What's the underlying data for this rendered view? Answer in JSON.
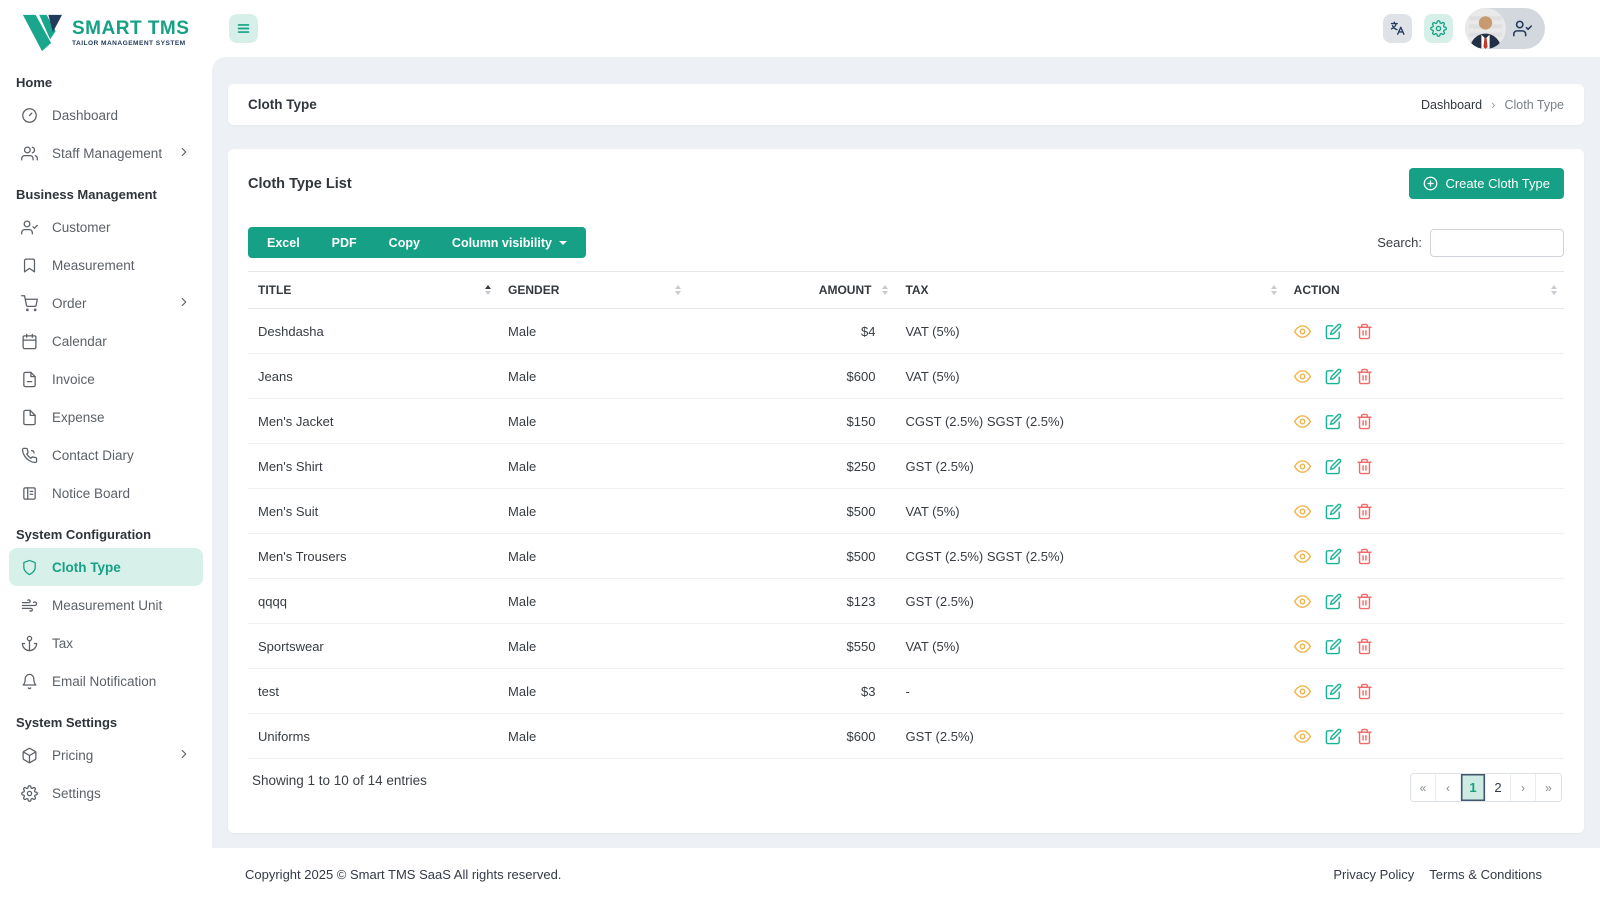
{
  "brand": {
    "title": "SMART TMS",
    "subtitle": "TAILOR MANAGEMENT SYSTEM"
  },
  "sidebar": {
    "sections": [
      {
        "heading": "Home",
        "items": [
          {
            "label": "Dashboard",
            "icon": "dashboard"
          },
          {
            "label": "Staff Management",
            "icon": "users",
            "chevron": true
          }
        ]
      },
      {
        "heading": "Business Management",
        "items": [
          {
            "label": "Customer",
            "icon": "user-check"
          },
          {
            "label": "Measurement",
            "icon": "bookmark"
          },
          {
            "label": "Order",
            "icon": "cart",
            "chevron": true
          },
          {
            "label": "Calendar",
            "icon": "calendar"
          },
          {
            "label": "Invoice",
            "icon": "file-minus"
          },
          {
            "label": "Expense",
            "icon": "file"
          },
          {
            "label": "Contact Diary",
            "icon": "phone"
          },
          {
            "label": "Notice Board",
            "icon": "board"
          }
        ]
      },
      {
        "heading": "System Configuration",
        "items": [
          {
            "label": "Cloth Type",
            "icon": "shield",
            "active": true
          },
          {
            "label": "Measurement Unit",
            "icon": "wind"
          },
          {
            "label": "Tax",
            "icon": "anchor"
          },
          {
            "label": "Email Notification",
            "icon": "bell"
          }
        ]
      },
      {
        "heading": "System Settings",
        "items": [
          {
            "label": "Pricing",
            "icon": "package",
            "chevron": true
          },
          {
            "label": "Settings",
            "icon": "gear"
          }
        ]
      }
    ]
  },
  "breadcrumb": {
    "title": "Cloth Type",
    "items": [
      "Dashboard",
      "Cloth Type"
    ],
    "separator": "›"
  },
  "list": {
    "title": "Cloth Type List",
    "create_button": "Create Cloth Type",
    "export_buttons": [
      "Excel",
      "PDF",
      "Copy"
    ],
    "column_visibility": "Column visibility",
    "search_label": "Search:",
    "search_value": ""
  },
  "table": {
    "columns": [
      "TITLE",
      "GENDER",
      "AMOUNT",
      "TAX",
      "ACTION"
    ],
    "sorted_column": 0,
    "sort_direction": "asc",
    "rows": [
      {
        "title": "Deshdasha",
        "gender": "Male",
        "amount": "$4",
        "tax": "VAT (5%)"
      },
      {
        "title": "Jeans",
        "gender": "Male",
        "amount": "$600",
        "tax": "VAT (5%)"
      },
      {
        "title": "Men's Jacket",
        "gender": "Male",
        "amount": "$150",
        "tax": "CGST (2.5%) SGST (2.5%)"
      },
      {
        "title": "Men's Shirt",
        "gender": "Male",
        "amount": "$250",
        "tax": "GST (2.5%)"
      },
      {
        "title": "Men's Suit",
        "gender": "Male",
        "amount": "$500",
        "tax": "VAT (5%)"
      },
      {
        "title": "Men's Trousers",
        "gender": "Male",
        "amount": "$500",
        "tax": "CGST (2.5%) SGST (2.5%)"
      },
      {
        "title": "qqqq",
        "gender": "Male",
        "amount": "$123",
        "tax": "GST (2.5%)"
      },
      {
        "title": "Sportswear",
        "gender": "Male",
        "amount": "$550",
        "tax": "VAT (5%)"
      },
      {
        "title": "test",
        "gender": "Male",
        "amount": "$3",
        "tax": "-"
      },
      {
        "title": "Uniforms",
        "gender": "Male",
        "amount": "$600",
        "tax": "GST (2.5%)"
      }
    ],
    "row_actions": [
      "view",
      "edit",
      "delete"
    ]
  },
  "pagination": {
    "summary": "Showing 1 to 10 of 14 entries",
    "buttons": [
      "«",
      "‹",
      "1",
      "2",
      "›",
      "»"
    ],
    "active_page": "1"
  },
  "footer": {
    "copyright": "Copyright 2025 © Smart TMS SaaS All rights reserved.",
    "links": [
      "Privacy Policy",
      "Terms & Conditions"
    ]
  },
  "colors": {
    "primary": "#16a085",
    "navy": "#233a5c",
    "active_nav_bg": "#d8f0ea",
    "view_icon": "#f1b44c",
    "edit_icon": "#17b394",
    "delete_icon": "#f46a6a"
  }
}
